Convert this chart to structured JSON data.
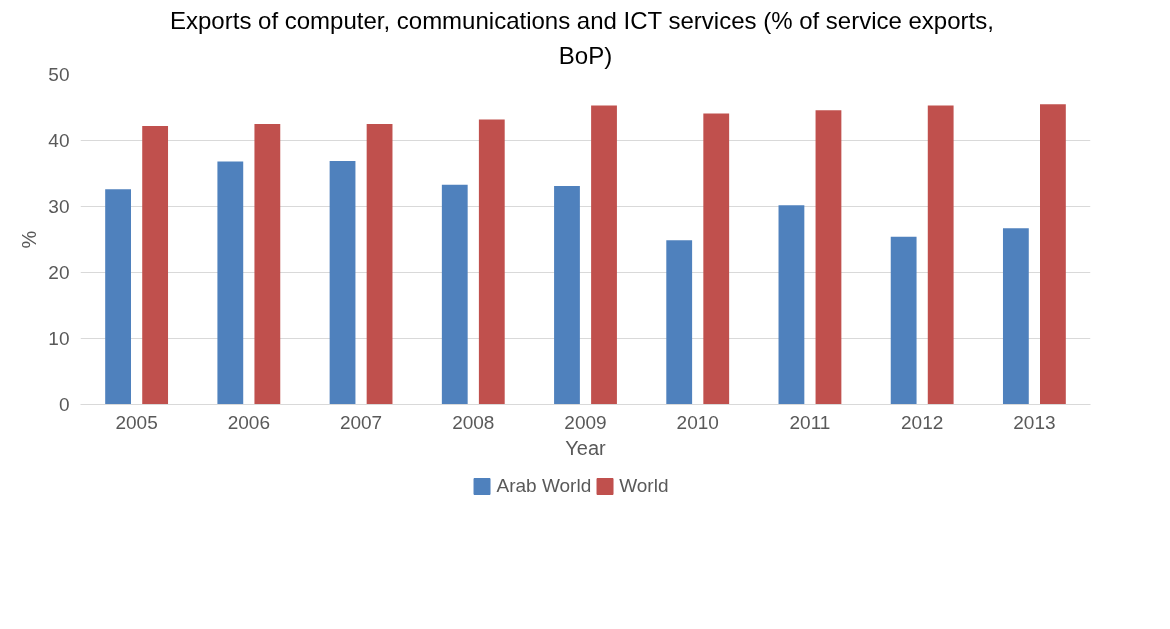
{
  "chart_data": {
    "type": "bar",
    "title": "Exports of computer, communications and ICT services  (% of service exports,\nBoP)",
    "xlabel": "Year",
    "ylabel": "%",
    "categories": [
      "2005",
      "2006",
      "2007",
      "2008",
      "2009",
      "2010",
      "2011",
      "2012",
      "2013"
    ],
    "series": [
      {
        "name": "Arab World",
        "color": "#4f81bd",
        "values": [
          32.6,
          36.8,
          36.9,
          33.3,
          33.1,
          24.9,
          30.2,
          25.4,
          26.7
        ]
      },
      {
        "name": "World",
        "color": "#c0504d",
        "values": [
          42.2,
          42.5,
          42.5,
          43.2,
          45.3,
          44.1,
          44.6,
          45.3,
          45.5
        ]
      }
    ],
    "ylim": [
      0,
      50
    ],
    "yticks": [
      0,
      10,
      20,
      30,
      40,
      50
    ],
    "grid": "y",
    "legend": "bottom"
  }
}
